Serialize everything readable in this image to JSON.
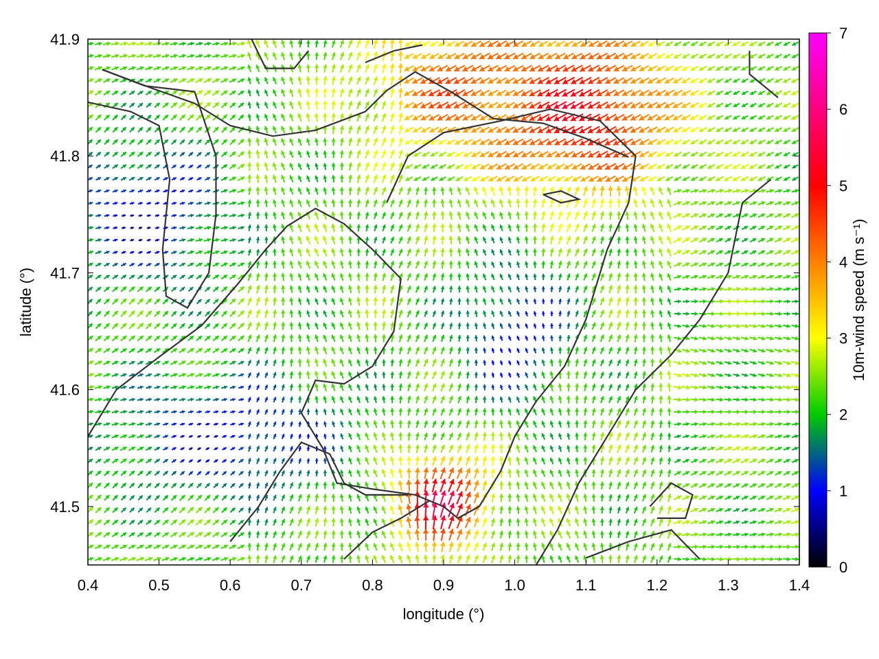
{
  "chart_data": {
    "type": "vector-field",
    "xlabel": "longitude (°)",
    "ylabel": "latitude (°)",
    "colorbar_label": "10m-wind speed (m s⁻¹)",
    "xlim": [
      0.4,
      1.4
    ],
    "ylim": [
      41.45,
      41.9
    ],
    "x_ticks": [
      "0.4",
      "0.5",
      "0.6",
      "0.7",
      "0.8",
      "0.9",
      "1.0",
      "1.1",
      "1.2",
      "1.3",
      "1.4"
    ],
    "y_ticks": [
      "41.5",
      "41.6",
      "41.7",
      "41.8",
      "41.9"
    ],
    "colorbar_range": [
      0,
      7
    ],
    "colorbar_ticks": [
      "0",
      "1",
      "2",
      "3",
      "4",
      "5",
      "6",
      "7"
    ],
    "colormap": [
      "#000000",
      "#0000ff",
      "#00cc00",
      "#ffff00",
      "#ff8000",
      "#ff0000",
      "#ff00ff"
    ],
    "speed_regions": [
      {
        "name": "northeast high-wind area",
        "lon": [
          0.98,
          1.2
        ],
        "lat": [
          41.78,
          41.9
        ],
        "speed": 5.2
      },
      {
        "name": "north-central orange area",
        "lon": [
          0.82,
          1.05
        ],
        "lat": [
          41.82,
          41.9
        ],
        "speed": 4.3
      },
      {
        "name": "southern red core",
        "lon": [
          0.86,
          0.93
        ],
        "lat": [
          41.48,
          41.53
        ],
        "speed": 5.5
      },
      {
        "name": "west calm basin",
        "lon": [
          0.4,
          0.56
        ],
        "lat": [
          41.7,
          41.8
        ],
        "speed": 0.8
      },
      {
        "name": "southwest calm basin",
        "lon": [
          0.45,
          0.75
        ],
        "lat": [
          41.52,
          41.6
        ],
        "speed": 0.9
      },
      {
        "name": "central calm strip",
        "lon": [
          0.95,
          1.05
        ],
        "lat": [
          41.6,
          41.7
        ],
        "speed": 1.0
      }
    ],
    "contours": [
      [
        [
          0.42,
          41.874
        ],
        [
          0.49,
          41.858
        ],
        [
          0.55,
          41.845
        ],
        [
          0.6,
          41.826
        ],
        [
          0.66,
          41.817
        ],
        [
          0.72,
          41.822
        ],
        [
          0.79,
          41.838
        ],
        [
          0.82,
          41.856
        ],
        [
          0.86,
          41.872
        ],
        [
          0.91,
          41.855
        ],
        [
          0.97,
          41.832
        ],
        [
          1.04,
          41.828
        ],
        [
          1.1,
          41.815
        ],
        [
          1.16,
          41.799
        ]
      ],
      [
        [
          0.4,
          41.846
        ],
        [
          0.46,
          41.838
        ],
        [
          0.5,
          41.826
        ],
        [
          0.515,
          41.78
        ],
        [
          0.505,
          41.72
        ],
        [
          0.51,
          41.68
        ],
        [
          0.54,
          41.67
        ],
        [
          0.57,
          41.7
        ],
        [
          0.58,
          41.75
        ],
        [
          0.58,
          41.8
        ],
        [
          0.55,
          41.855
        ],
        [
          0.48,
          41.86
        ],
        [
          0.42,
          41.874
        ]
      ],
      [
        [
          0.4,
          41.56
        ],
        [
          0.44,
          41.6
        ],
        [
          0.5,
          41.628
        ],
        [
          0.56,
          41.655
        ],
        [
          0.61,
          41.69
        ],
        [
          0.65,
          41.72
        ],
        [
          0.68,
          41.74
        ],
        [
          0.72,
          41.755
        ],
        [
          0.76,
          41.742
        ],
        [
          0.8,
          41.72
        ],
        [
          0.84,
          41.695
        ],
        [
          0.83,
          41.65
        ],
        [
          0.8,
          41.62
        ],
        [
          0.76,
          41.605
        ],
        [
          0.72,
          41.608
        ],
        [
          0.7,
          41.58
        ],
        [
          0.73,
          41.55
        ],
        [
          0.75,
          41.52
        ],
        [
          0.8,
          41.515
        ],
        [
          0.86,
          41.51
        ],
        [
          0.9,
          41.5
        ],
        [
          0.92,
          41.49
        ],
        [
          0.95,
          41.5
        ],
        [
          0.98,
          41.53
        ],
        [
          1.0,
          41.56
        ],
        [
          1.03,
          41.59
        ],
        [
          1.07,
          41.62
        ],
        [
          1.1,
          41.66
        ],
        [
          1.13,
          41.72
        ],
        [
          1.16,
          41.76
        ],
        [
          1.17,
          41.8
        ],
        [
          1.12,
          41.83
        ],
        [
          1.05,
          41.84
        ],
        [
          0.98,
          41.83
        ],
        [
          0.9,
          41.82
        ],
        [
          0.85,
          41.8
        ],
        [
          0.82,
          41.76
        ]
      ],
      [
        [
          0.6,
          41.47
        ],
        [
          0.64,
          41.5
        ],
        [
          0.67,
          41.53
        ],
        [
          0.7,
          41.555
        ],
        [
          0.74,
          41.545
        ],
        [
          0.76,
          41.52
        ],
        [
          0.79,
          41.51
        ],
        [
          0.85,
          41.51
        ]
      ],
      [
        [
          0.76,
          41.455
        ],
        [
          0.8,
          41.478
        ],
        [
          0.84,
          41.49
        ],
        [
          0.88,
          41.505
        ]
      ],
      [
        [
          1.03,
          41.45
        ],
        [
          1.06,
          41.48
        ],
        [
          1.09,
          41.52
        ],
        [
          1.13,
          41.56
        ],
        [
          1.17,
          41.6
        ],
        [
          1.22,
          41.63
        ],
        [
          1.26,
          41.66
        ],
        [
          1.3,
          41.7
        ],
        [
          1.32,
          41.76
        ],
        [
          1.36,
          41.78
        ]
      ],
      [
        [
          1.19,
          41.5
        ],
        [
          1.22,
          41.52
        ],
        [
          1.25,
          41.51
        ],
        [
          1.24,
          41.49
        ],
        [
          1.2,
          41.49
        ]
      ],
      [
        [
          1.1,
          41.456
        ],
        [
          1.16,
          41.47
        ],
        [
          1.22,
          41.48
        ],
        [
          1.26,
          41.455
        ]
      ],
      [
        [
          1.33,
          41.89
        ],
        [
          1.33,
          41.87
        ],
        [
          1.37,
          41.85
        ]
      ],
      [
        [
          0.63,
          41.9
        ],
        [
          0.65,
          41.875
        ],
        [
          0.69,
          41.875
        ],
        [
          0.71,
          41.89
        ]
      ],
      [
        [
          0.79,
          41.88
        ],
        [
          0.83,
          41.89
        ],
        [
          0.87,
          41.895
        ]
      ],
      [
        [
          1.04,
          41.767
        ],
        [
          1.065,
          41.77
        ],
        [
          1.09,
          41.763
        ],
        [
          1.065,
          41.76
        ],
        [
          1.04,
          41.767
        ]
      ]
    ]
  }
}
